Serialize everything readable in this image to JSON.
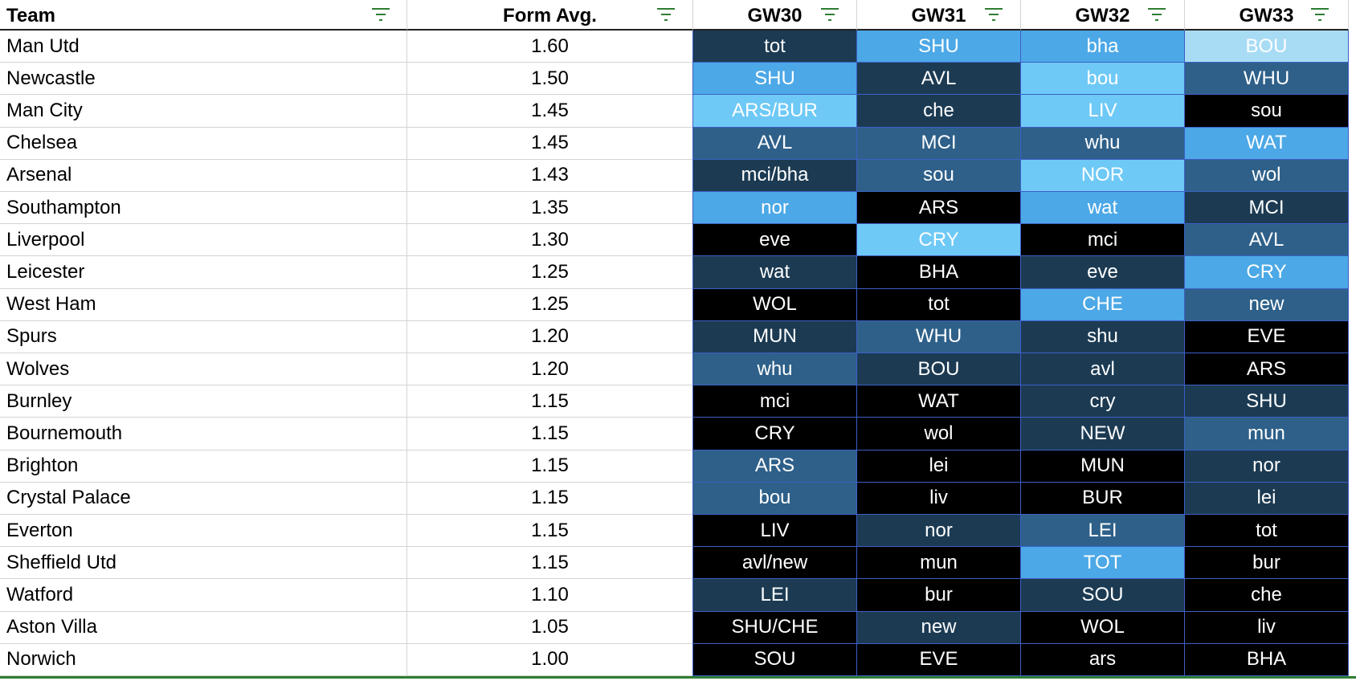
{
  "headers": {
    "team": "Team",
    "form": "Form Avg.",
    "gw": [
      "GW30",
      "GW31",
      "GW32",
      "GW33"
    ]
  },
  "filter_icon": "filter-icon",
  "colors": {
    "black": "#000000",
    "navy": "#1c3b53",
    "steel": "#2e6089",
    "blue": "#4ca8e6",
    "light": "#6ec9f6",
    "pale": "#a8dcf5",
    "filter_green": "#2e7d32"
  },
  "rows": [
    {
      "team": "Man Utd",
      "form": "1.60",
      "fx": [
        [
          "tot",
          "navy"
        ],
        [
          "SHU",
          "blue"
        ],
        [
          "bha",
          "blue"
        ],
        [
          "BOU",
          "pale"
        ]
      ]
    },
    {
      "team": "Newcastle",
      "form": "1.50",
      "fx": [
        [
          "SHU",
          "blue"
        ],
        [
          "AVL",
          "navy"
        ],
        [
          "bou",
          "light"
        ],
        [
          "WHU",
          "steel"
        ]
      ]
    },
    {
      "team": "Man City",
      "form": "1.45",
      "fx": [
        [
          "ARS/BUR",
          "light"
        ],
        [
          "che",
          "navy"
        ],
        [
          "LIV",
          "light"
        ],
        [
          "sou",
          "black"
        ]
      ]
    },
    {
      "team": "Chelsea",
      "form": "1.45",
      "fx": [
        [
          "AVL",
          "steel"
        ],
        [
          "MCI",
          "steel"
        ],
        [
          "whu",
          "steel"
        ],
        [
          "WAT",
          "blue"
        ]
      ]
    },
    {
      "team": "Arsenal",
      "form": "1.43",
      "fx": [
        [
          "mci/bha",
          "navy"
        ],
        [
          "sou",
          "steel"
        ],
        [
          "NOR",
          "light"
        ],
        [
          "wol",
          "steel"
        ]
      ]
    },
    {
      "team": "Southampton",
      "form": "1.35",
      "fx": [
        [
          "nor",
          "blue"
        ],
        [
          "ARS",
          "black"
        ],
        [
          "wat",
          "blue"
        ],
        [
          "MCI",
          "navy"
        ]
      ]
    },
    {
      "team": "Liverpool",
      "form": "1.30",
      "fx": [
        [
          "eve",
          "black"
        ],
        [
          "CRY",
          "light"
        ],
        [
          "mci",
          "black"
        ],
        [
          "AVL",
          "steel"
        ]
      ]
    },
    {
      "team": "Leicester",
      "form": "1.25",
      "fx": [
        [
          "wat",
          "navy"
        ],
        [
          "BHA",
          "black"
        ],
        [
          "eve",
          "navy"
        ],
        [
          "CRY",
          "blue"
        ]
      ]
    },
    {
      "team": "West Ham",
      "form": "1.25",
      "fx": [
        [
          "WOL",
          "black"
        ],
        [
          "tot",
          "black"
        ],
        [
          "CHE",
          "blue"
        ],
        [
          "new",
          "steel"
        ]
      ]
    },
    {
      "team": "Spurs",
      "form": "1.20",
      "fx": [
        [
          "MUN",
          "navy"
        ],
        [
          "WHU",
          "steel"
        ],
        [
          "shu",
          "navy"
        ],
        [
          "EVE",
          "black"
        ]
      ]
    },
    {
      "team": "Wolves",
      "form": "1.20",
      "fx": [
        [
          "whu",
          "steel"
        ],
        [
          "BOU",
          "navy"
        ],
        [
          "avl",
          "navy"
        ],
        [
          "ARS",
          "black"
        ]
      ]
    },
    {
      "team": "Burnley",
      "form": "1.15",
      "fx": [
        [
          "mci",
          "black"
        ],
        [
          "WAT",
          "black"
        ],
        [
          "cry",
          "navy"
        ],
        [
          "SHU",
          "navy"
        ]
      ]
    },
    {
      "team": "Bournemouth",
      "form": "1.15",
      "fx": [
        [
          "CRY",
          "black"
        ],
        [
          "wol",
          "black"
        ],
        [
          "NEW",
          "navy"
        ],
        [
          "mun",
          "steel"
        ]
      ]
    },
    {
      "team": "Brighton",
      "form": "1.15",
      "fx": [
        [
          "ARS",
          "steel"
        ],
        [
          "lei",
          "black"
        ],
        [
          "MUN",
          "black"
        ],
        [
          "nor",
          "navy"
        ]
      ]
    },
    {
      "team": "Crystal Palace",
      "form": "1.15",
      "fx": [
        [
          "bou",
          "steel"
        ],
        [
          "liv",
          "black"
        ],
        [
          "BUR",
          "black"
        ],
        [
          "lei",
          "navy"
        ]
      ]
    },
    {
      "team": "Everton",
      "form": "1.15",
      "fx": [
        [
          "LIV",
          "black"
        ],
        [
          "nor",
          "navy"
        ],
        [
          "LEI",
          "steel"
        ],
        [
          "tot",
          "black"
        ]
      ]
    },
    {
      "team": "Sheffield Utd",
      "form": "1.15",
      "fx": [
        [
          "avl/new",
          "black"
        ],
        [
          "mun",
          "black"
        ],
        [
          "TOT",
          "blue"
        ],
        [
          "bur",
          "black"
        ]
      ]
    },
    {
      "team": "Watford",
      "form": "1.10",
      "fx": [
        [
          "LEI",
          "navy"
        ],
        [
          "bur",
          "black"
        ],
        [
          "SOU",
          "navy"
        ],
        [
          "che",
          "black"
        ]
      ]
    },
    {
      "team": "Aston Villa",
      "form": "1.05",
      "fx": [
        [
          "SHU/CHE",
          "black"
        ],
        [
          "new",
          "navy"
        ],
        [
          "WOL",
          "black"
        ],
        [
          "liv",
          "black"
        ]
      ]
    },
    {
      "team": "Norwich",
      "form": "1.00",
      "fx": [
        [
          "SOU",
          "black"
        ],
        [
          "EVE",
          "black"
        ],
        [
          "ars",
          "black"
        ],
        [
          "BHA",
          "black"
        ]
      ]
    }
  ]
}
